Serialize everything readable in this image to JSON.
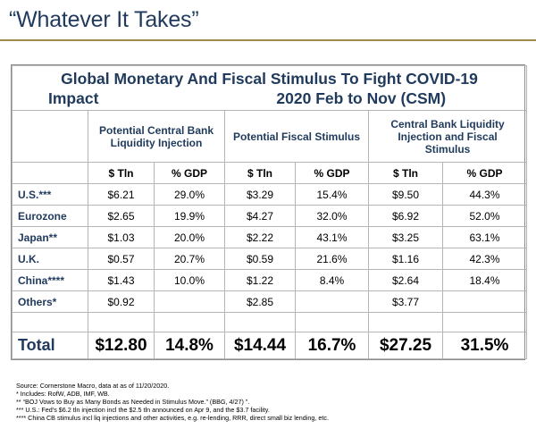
{
  "header": {
    "title": "“Whatever It Takes”"
  },
  "table": {
    "title_line1": "Global Monetary And Fiscal Stimulus To Fight COVID-19",
    "title_line2_left": "Impact",
    "title_line2_right": "2020 Feb to Nov (CSM)",
    "groups": [
      "Potential Central Bank Liquidity Injection",
      "Potential Fiscal Stimulus",
      "Central Bank Liquidity Injection and Fiscal Stimulus"
    ],
    "units": [
      "$ Tln",
      "% GDP",
      "$ Tln",
      "% GDP",
      "$ Tln",
      "% GDP"
    ],
    "rows": [
      {
        "country": "U.S.***",
        "v": [
          "$6.21",
          "29.0%",
          "$3.29",
          "15.4%",
          "$9.50",
          "44.3%"
        ]
      },
      {
        "country": "Eurozone",
        "v": [
          "$2.65",
          "19.9%",
          "$4.27",
          "32.0%",
          "$6.92",
          "52.0%"
        ]
      },
      {
        "country": "Japan**",
        "v": [
          "$1.03",
          "20.0%",
          "$2.22",
          "43.1%",
          "$3.25",
          "63.1%"
        ]
      },
      {
        "country": "U.K.",
        "v": [
          "$0.57",
          "20.7%",
          "$0.59",
          "21.6%",
          "$1.16",
          "42.3%"
        ]
      },
      {
        "country": "China****",
        "v": [
          "$1.43",
          "10.0%",
          "$1.22",
          "8.4%",
          "$2.64",
          "18.4%"
        ]
      },
      {
        "country": "Others*",
        "v": [
          "$0.92",
          "",
          "$2.85",
          "",
          "$3.77",
          ""
        ]
      }
    ],
    "total": {
      "label": "Total",
      "v": [
        "$12.80",
        "14.8%",
        "$14.44",
        "16.7%",
        "$27.25",
        "31.5%"
      ]
    }
  },
  "notes": [
    "Source: Cornerstone Macro, data at as of 11/20/2020.",
    "* Includes: RofW, ADB, IMF, WB.",
    "** “BOJ Vows to Buy as Many Bonds as Needed in Stimulus Move.” (BBG, 4/27) ”.",
    "*** U.S.: Fed’s $6.2 tln injection incl the $2.5 tln announced on Apr 9, and the $3.7 facility.",
    "**** China CB stimulus incl liq injections and other activities, e.g. re-lending, RRR, direct small biz lending, etc."
  ]
}
